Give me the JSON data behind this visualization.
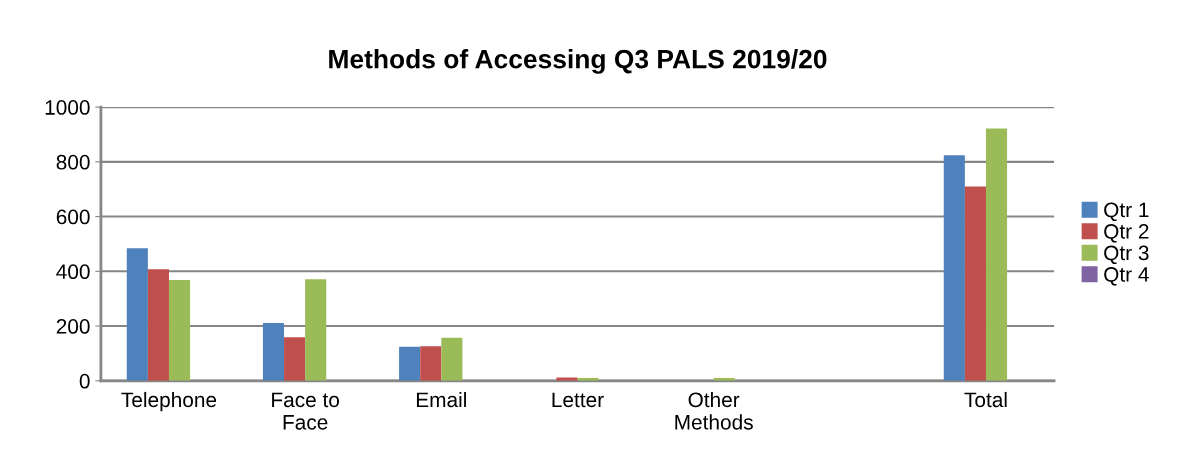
{
  "chart_data": {
    "type": "bar",
    "title": "Methods of Accessing Q3 PALS 2019/20",
    "categories": [
      "Telephone",
      "Face to\nFace",
      "Email",
      "Letter",
      "Other\nMethods",
      null,
      "Total"
    ],
    "series": [
      {
        "name": "Qtr 1",
        "color": "#4f81bd",
        "values": [
          484,
          211,
          124,
          null,
          null,
          null,
          824
        ]
      },
      {
        "name": "Qtr 2",
        "color": "#c0504d",
        "values": [
          408,
          159,
          126,
          12,
          null,
          null,
          710
        ]
      },
      {
        "name": "Qtr 3",
        "color": "#9bbb59",
        "values": [
          368,
          371,
          157,
          10,
          10,
          null,
          922
        ]
      },
      {
        "name": "Qtr 4",
        "color": "#8064a2",
        "values": [
          null,
          null,
          null,
          null,
          null,
          null,
          null
        ]
      }
    ],
    "ylim": [
      0,
      1000
    ],
    "yticks": [
      0,
      200,
      400,
      600,
      800,
      1000
    ],
    "grid": "y",
    "legend": "right"
  }
}
